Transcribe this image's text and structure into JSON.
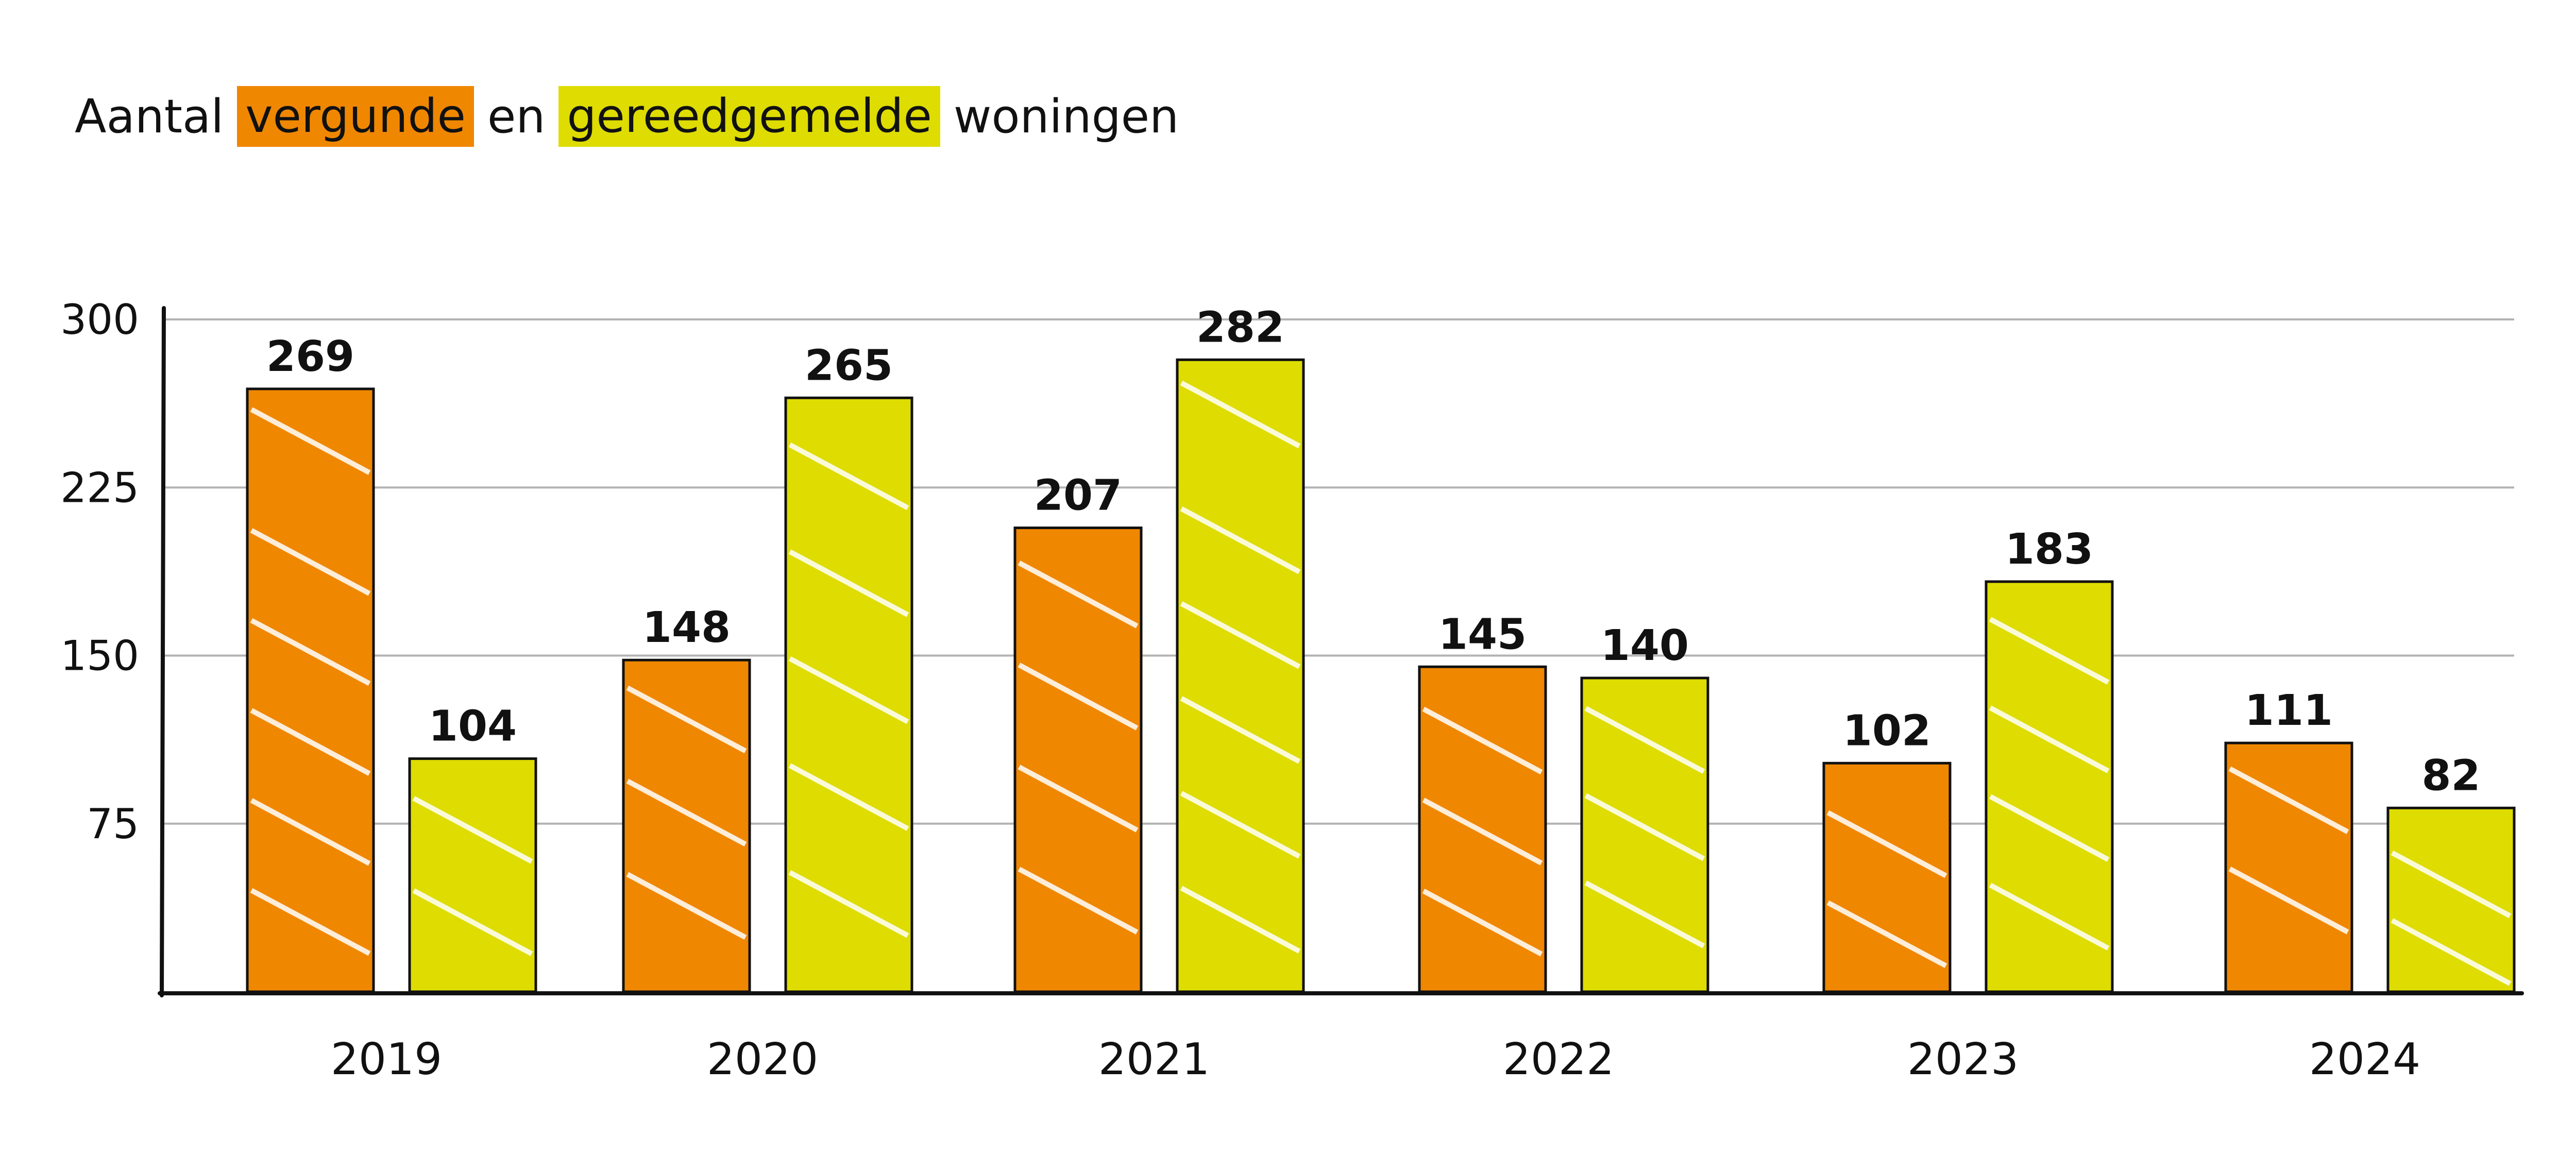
{
  "chart_data": {
    "type": "bar",
    "title_parts": {
      "prefix": "Aantal",
      "series1_word": "vergunde",
      "middle": "en",
      "series2_word": "gereedgemelde",
      "suffix": "woningen"
    },
    "categories": [
      "2019",
      "2020",
      "2021",
      "2022",
      "2023",
      "2024"
    ],
    "series": [
      {
        "key": "vergunde",
        "color": "#f08700",
        "values": [
          269,
          148,
          207,
          145,
          102,
          111
        ]
      },
      {
        "key": "gereedgemelde",
        "color": "#dedc00",
        "values": [
          104,
          265,
          282,
          140,
          183,
          82
        ]
      }
    ],
    "ylim": [
      0,
      300
    ],
    "yticks": [
      75,
      150,
      225,
      300
    ],
    "grid": true,
    "xlabel": "",
    "ylabel": ""
  }
}
